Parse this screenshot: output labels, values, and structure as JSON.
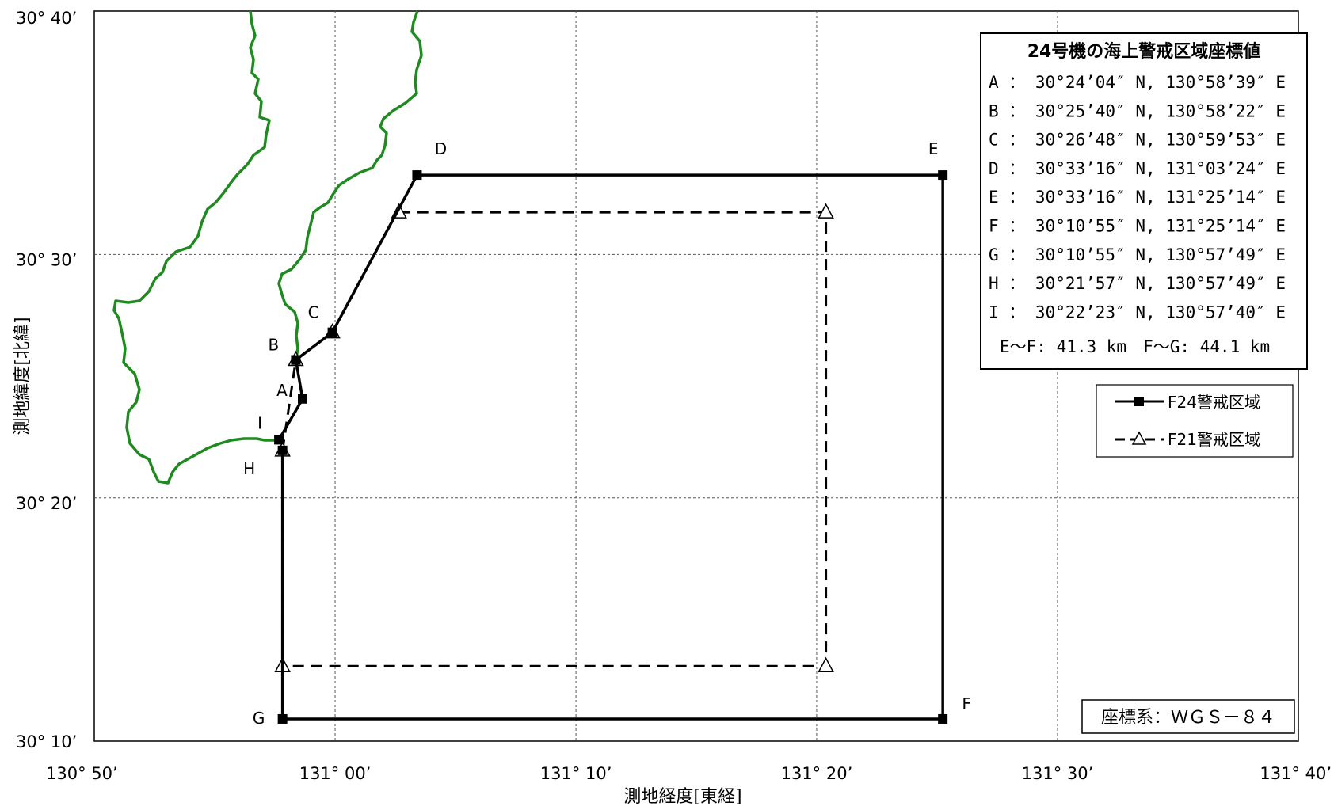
{
  "map": {
    "y_axis_title": "測地緯度[北緯]",
    "x_axis_title": "測地経度[東経]",
    "x_ticks": [
      {
        "lon": 130.8333,
        "label": "130° 50’"
      },
      {
        "lon": 131.0,
        "label": "131° 00’"
      },
      {
        "lon": 131.1667,
        "label": "131° 10’"
      },
      {
        "lon": 131.3333,
        "label": "131° 20’"
      },
      {
        "lon": 131.5,
        "label": "131° 30’"
      },
      {
        "lon": 131.6667,
        "label": "131° 40’"
      }
    ],
    "y_ticks": [
      {
        "lat": 30.6667,
        "label": "30° 40’"
      },
      {
        "lat": 30.5,
        "label": "30° 30’"
      },
      {
        "lat": 30.3333,
        "label": "30° 20’"
      },
      {
        "lat": 30.1667,
        "label": "30° 10’"
      }
    ],
    "lon_range": [
      130.8333,
      131.6667
    ],
    "lat_range": [
      30.1667,
      30.6667
    ],
    "grid": true,
    "colors": {
      "coastline": "#1f8a1f",
      "zone_line": "#000000",
      "grid": "#555555"
    }
  },
  "zones": {
    "f24": {
      "legend": "F24警戒区域",
      "style": "solid",
      "marker": "filled-square",
      "points": [
        {
          "name": "I",
          "lat": 30.3731,
          "lon": 130.9611
        },
        {
          "name": "A",
          "lat": 30.4011,
          "lon": 130.9775
        },
        {
          "name": "B",
          "lat": 30.4278,
          "lon": 130.9728
        },
        {
          "name": "C",
          "lat": 30.4467,
          "lon": 130.9981
        },
        {
          "name": "D",
          "lat": 30.5544,
          "lon": 131.0567
        },
        {
          "name": "E",
          "lat": 30.5544,
          "lon": 131.4206
        },
        {
          "name": "F",
          "lat": 30.1819,
          "lon": 131.4206
        },
        {
          "name": "G",
          "lat": 30.1819,
          "lon": 130.9636
        },
        {
          "name": "H",
          "lat": 30.3658,
          "lon": 130.9636
        }
      ]
    },
    "f21": {
      "legend": "F21警戒区域",
      "style": "dashed",
      "marker": "open-triangle",
      "points": [
        {
          "lat": 30.5289,
          "lon": 131.0442
        },
        {
          "lat": 30.5289,
          "lon": 131.3397
        },
        {
          "lat": 30.2181,
          "lon": 131.3397
        },
        {
          "lat": 30.2181,
          "lon": 130.9636
        },
        {
          "lat": 30.3658,
          "lon": 130.9636
        },
        {
          "lat": 30.4278,
          "lon": 130.9728
        },
        {
          "lat": 30.4467,
          "lon": 130.9981
        }
      ]
    }
  },
  "info_box": {
    "title": "24号機の海上警戒区域座標値",
    "rows": [
      "A ： 30°24’04″ N, 130°58’39″ E",
      "B ： 30°25’40″ N, 130°58’22″ E",
      "C ： 30°26’48″ N, 130°59’53″ E",
      "D ： 30°33’16″ N, 131°03’24″ E",
      "E ： 30°33’16″ N, 131°25’14″ E",
      "F ： 30°10’55″ N, 131°25’14″ E",
      "G ： 30°10’55″ N, 130°57’49″ E",
      "H ： 30°21’57″ N, 130°57’49″ E",
      "I ： 30°22’23″ N, 130°57’40″ E"
    ],
    "distances": "E～F: 41.3 km　F～G: 44.1 km"
  },
  "crs": "座標系：ＷＧＳ－８４"
}
